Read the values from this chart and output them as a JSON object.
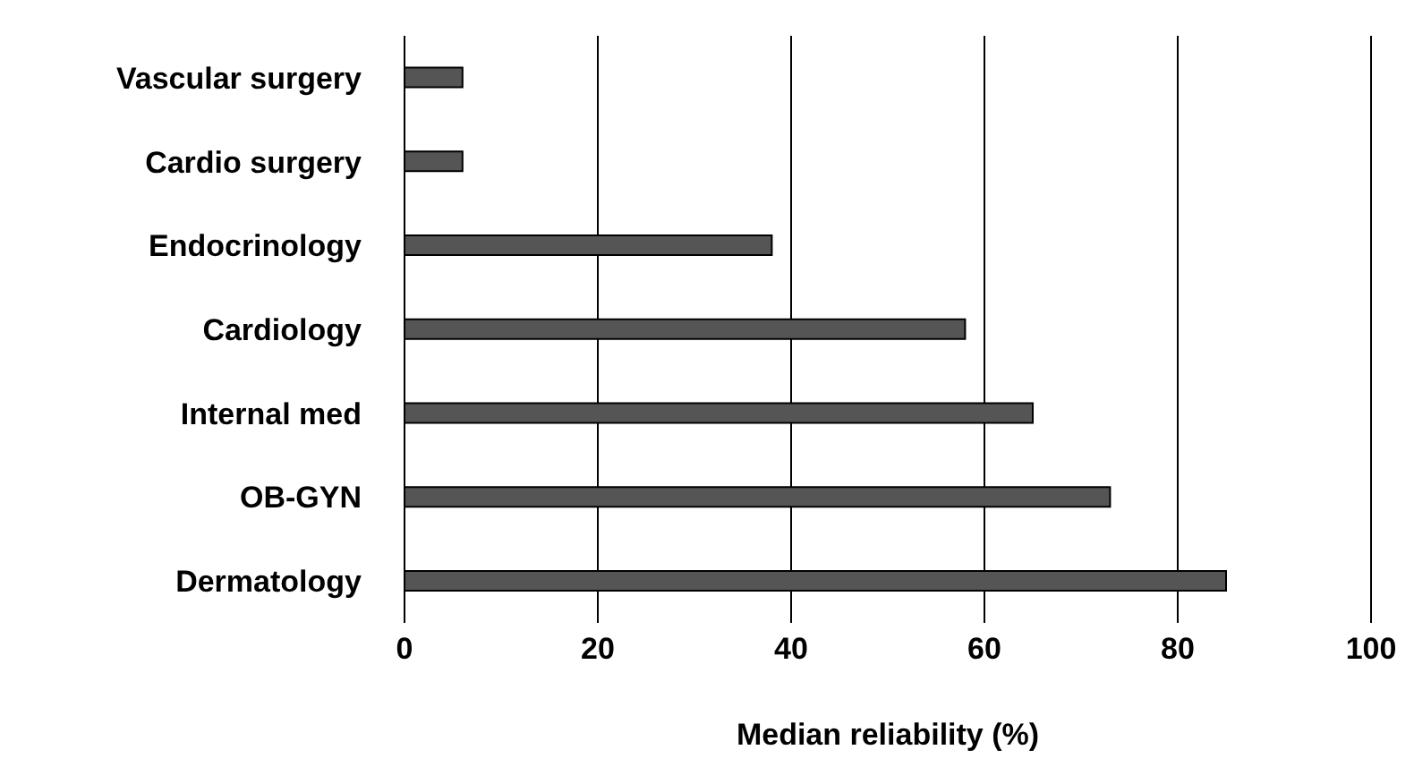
{
  "chart_data": {
    "type": "bar",
    "orientation": "horizontal",
    "categories": [
      "Vascular surgery",
      "Cardio surgery",
      "Endocrinology",
      "Cardiology",
      "Internal med",
      "OB-GYN",
      "Dermatology"
    ],
    "values": [
      6,
      6,
      38,
      58,
      65,
      73,
      85
    ],
    "color": "#555555",
    "xlabel": "Median reliability (%)",
    "xlim": [
      0,
      100
    ],
    "xticks": [
      0,
      20,
      40,
      60,
      80,
      100
    ],
    "grid": "x"
  }
}
